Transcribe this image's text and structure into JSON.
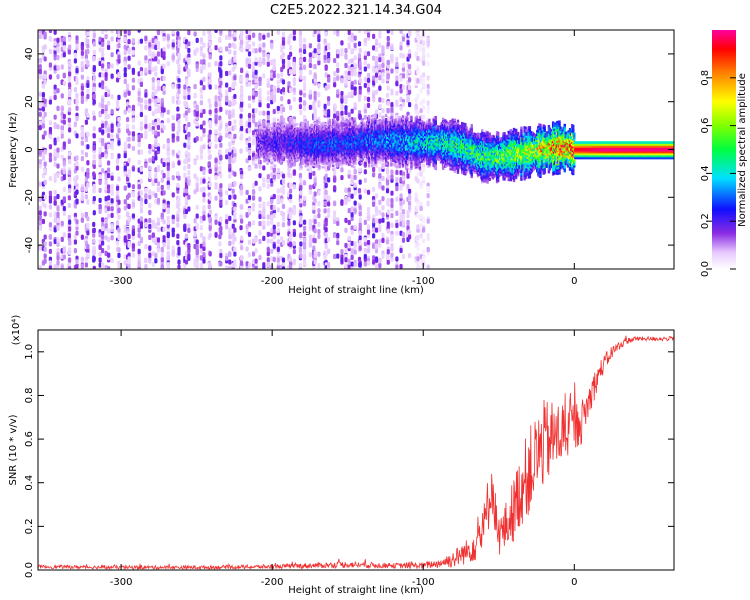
{
  "title": "C2E5.2022.321.14.34.G04",
  "chart_data": [
    {
      "type": "heatmap",
      "xlabel": "Height of straight line (km)",
      "ylabel": "Frequency (Hz)",
      "xlim": [
        -355,
        66
      ],
      "ylim": [
        -50,
        50
      ],
      "x_ticks": [
        -300,
        -200,
        -100,
        0
      ],
      "x_tick_labels": [
        "-300",
        "-200",
        "-100",
        "0"
      ],
      "y_ticks": [
        -40,
        -20,
        0,
        20,
        40
      ],
      "y_tick_labels": [
        "-40",
        "-20",
        "0",
        "20",
        "40"
      ],
      "colorscale": "rainbow",
      "colorbar": {
        "label": "Normalized spectral amplitude",
        "range": [
          0,
          1
        ],
        "ticks": [
          0,
          0.2,
          0.4,
          0.6,
          0.8
        ],
        "tick_labels": [
          "0.0",
          "0.2",
          "0.4",
          "0.6",
          "0.8"
        ]
      },
      "regions": [
        {
          "x_range": [
            -355,
            -107
          ],
          "description_level": "scattered noise",
          "amplitude": [
            0.05,
            0.2
          ],
          "freq_range": [
            -50,
            50
          ]
        },
        {
          "x_range": [
            -107,
            -95
          ],
          "description_level": "sparse noise",
          "amplitude": [
            0.02,
            0.1
          ],
          "freq_range": [
            -50,
            50
          ]
        }
      ],
      "ridge": {
        "x": [
          -210,
          -190,
          -170,
          -150,
          -130,
          -110,
          -100,
          -90,
          -80,
          -70,
          -60,
          -50,
          -40,
          -30,
          -20,
          -10,
          0,
          20,
          40,
          66
        ],
        "freq": [
          3,
          3,
          2,
          3,
          4,
          3,
          3,
          3,
          2,
          0,
          -3,
          -3,
          -2,
          -1,
          0,
          1,
          0,
          0,
          0,
          0
        ],
        "amplitude": [
          0.2,
          0.25,
          0.3,
          0.3,
          0.35,
          0.4,
          0.45,
          0.5,
          0.5,
          0.55,
          0.55,
          0.6,
          0.65,
          0.7,
          0.8,
          0.9,
          0.95,
          1.0,
          1.0,
          1.0
        ]
      }
    },
    {
      "type": "line",
      "xlabel": "Height of straight line (km)",
      "ylabel": "SNR (10 * v/v)",
      "y_multiplier": "(x10⁴)",
      "xlim": [
        -355,
        66
      ],
      "ylim": [
        0,
        1.1
      ],
      "x_ticks": [
        -300,
        -200,
        -100,
        0
      ],
      "x_tick_labels": [
        "-300",
        "-200",
        "-100",
        "0"
      ],
      "y_ticks": [
        0,
        0.2,
        0.4,
        0.6,
        0.8,
        1.0
      ],
      "y_tick_labels": [
        "0.0",
        "0.2",
        "0.4",
        "0.6",
        "0.8",
        "1.0"
      ],
      "series": [
        {
          "color": "#f03030",
          "x": [
            -355,
            -300,
            -250,
            -200,
            -175,
            -150,
            -120,
            -100,
            -90,
            -80,
            -70,
            -65,
            -60,
            -57,
            -55,
            -52,
            -50,
            -45,
            -40,
            -35,
            -30,
            -25,
            -20,
            -15,
            -10,
            -5,
            0,
            5,
            10,
            15,
            20,
            25,
            30,
            35,
            40,
            50,
            66
          ],
          "y": [
            0.015,
            0.012,
            0.012,
            0.015,
            0.02,
            0.025,
            0.02,
            0.02,
            0.03,
            0.05,
            0.09,
            0.13,
            0.18,
            0.3,
            0.4,
            0.25,
            0.15,
            0.2,
            0.28,
            0.38,
            0.45,
            0.52,
            0.58,
            0.6,
            0.62,
            0.64,
            0.66,
            0.68,
            0.78,
            0.88,
            0.95,
            1.0,
            1.03,
            1.05,
            1.06,
            1.06,
            1.06
          ],
          "noise": [
            0.008,
            0.008,
            0.008,
            0.01,
            0.012,
            0.015,
            0.012,
            0.015,
            0.02,
            0.04,
            0.06,
            0.09,
            0.12,
            0.14,
            0.12,
            0.1,
            0.09,
            0.12,
            0.15,
            0.18,
            0.2,
            0.2,
            0.2,
            0.18,
            0.16,
            0.14,
            0.12,
            0.1,
            0.08,
            0.06,
            0.04,
            0.03,
            0.02,
            0.015,
            0.01,
            0.01,
            0.01
          ]
        }
      ]
    }
  ]
}
